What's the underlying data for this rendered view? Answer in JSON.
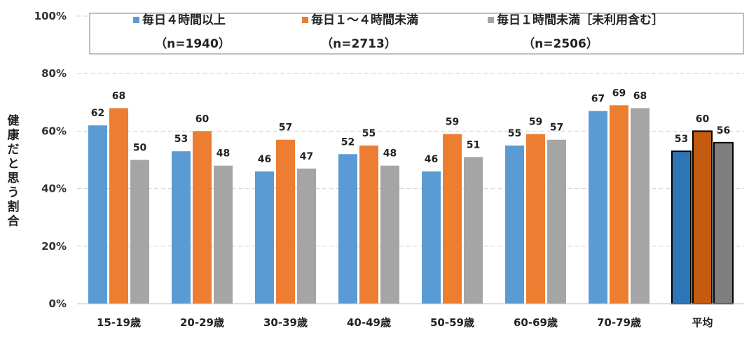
{
  "chart_data": {
    "type": "bar",
    "ylabel": "健康だと思う割合",
    "ylim": [
      0,
      100
    ],
    "yticks": [
      0,
      20,
      40,
      60,
      80,
      100
    ],
    "ytick_labels": [
      "0%",
      "20%",
      "40%",
      "60%",
      "80%",
      "100%"
    ],
    "grid": "horizontal dashed",
    "legend_position": "top",
    "categories": [
      "15-19歳",
      "20-29歳",
      "30-39歳",
      "40-49歳",
      "50-59歳",
      "60-69歳",
      "70-79歳",
      "平均"
    ],
    "series": [
      {
        "name": "毎日４時間以上",
        "n_label": "（n=1940）",
        "color": "#5B9BD5",
        "avg_color": "#2E75B6",
        "values": [
          62,
          53,
          46,
          52,
          46,
          55,
          67,
          53
        ]
      },
      {
        "name": "毎日１～４時間未満",
        "n_label": "（n=2713）",
        "color": "#ED7D31",
        "avg_color": "#C55A11",
        "values": [
          68,
          60,
          57,
          55,
          59,
          59,
          69,
          60
        ]
      },
      {
        "name": "毎日１時間未満［未利用含む］",
        "n_label": "（n=2506）",
        "color": "#A5A5A5",
        "avg_color": "#7F7F7F",
        "values": [
          50,
          48,
          47,
          48,
          51,
          57,
          68,
          56
        ]
      }
    ]
  }
}
